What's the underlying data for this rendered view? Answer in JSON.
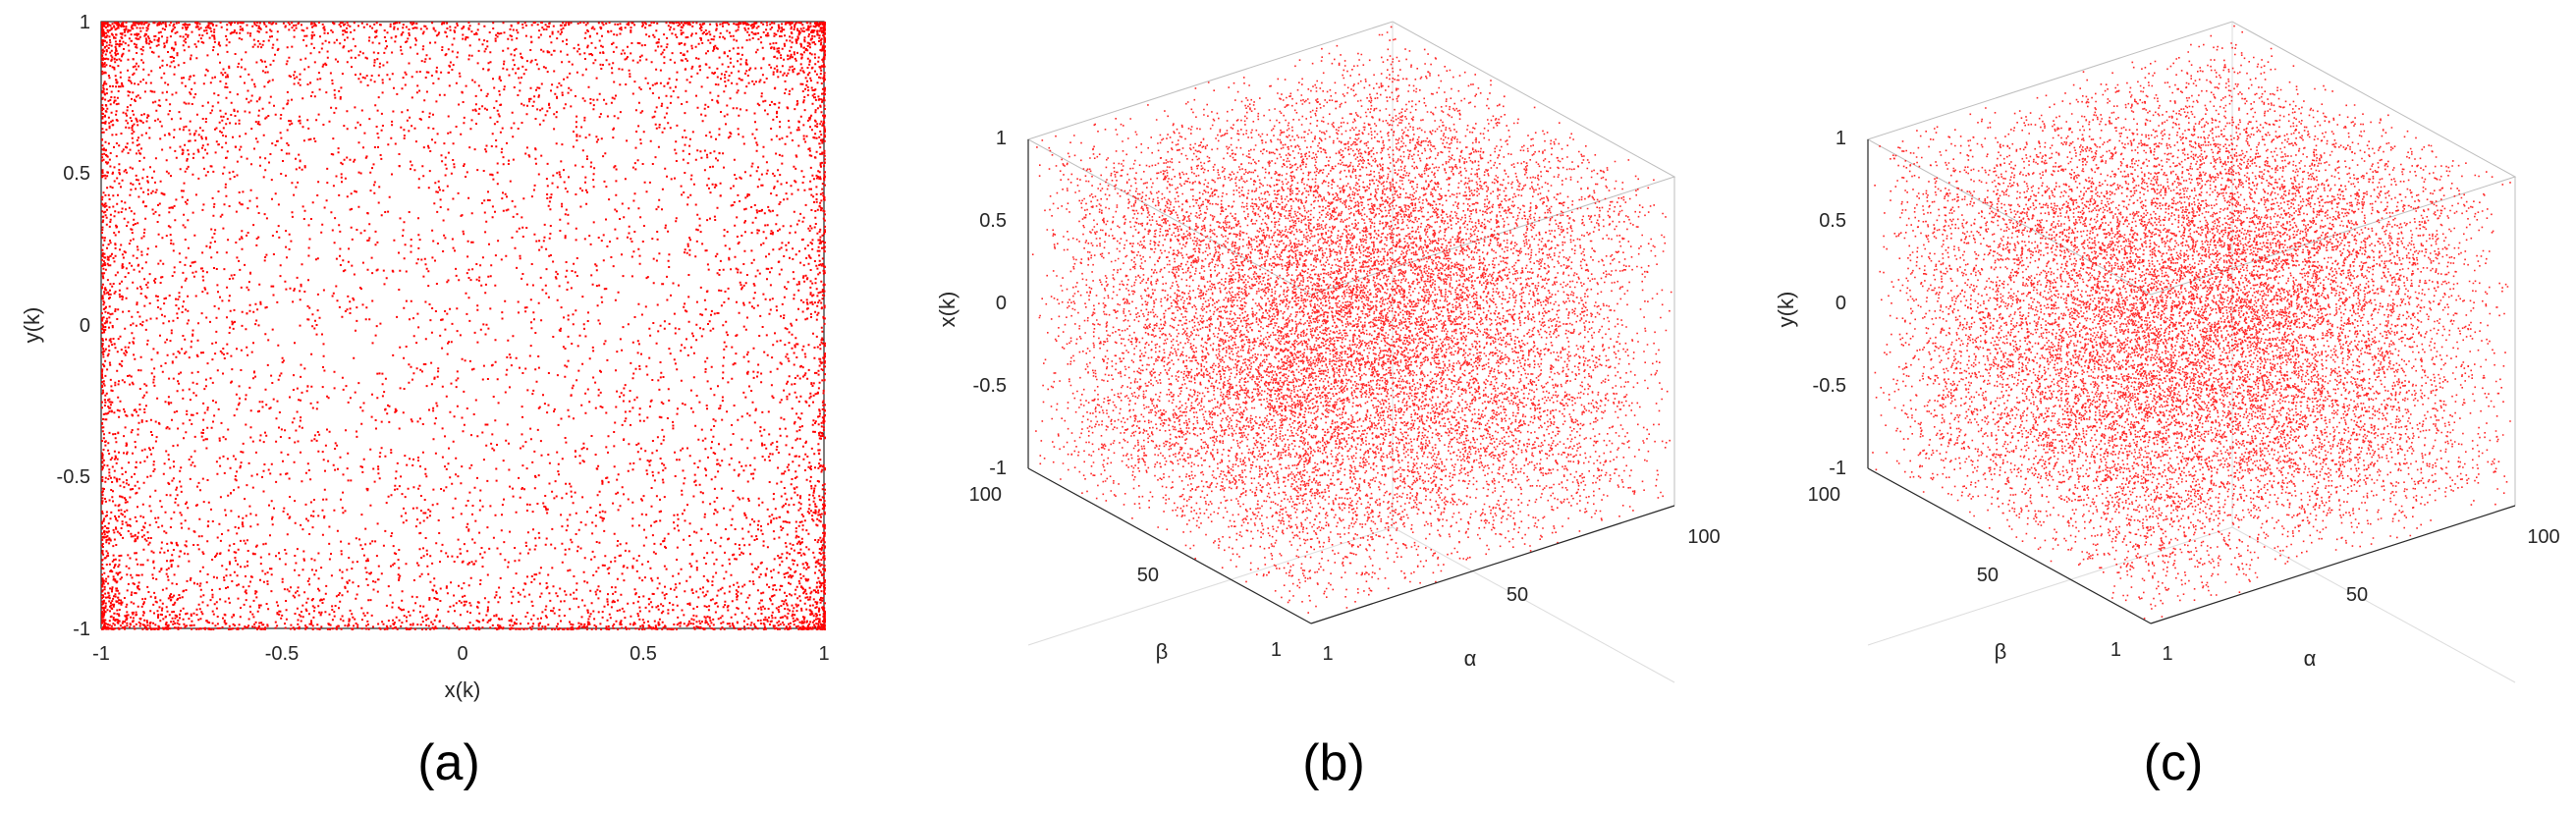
{
  "chart_data": [
    {
      "type": "scatter",
      "caption": "(a)",
      "xlabel": "x(k)",
      "ylabel": "y(k)",
      "xlim": [
        -1,
        1
      ],
      "ylim": [
        -1,
        1
      ],
      "xticks": [
        "-1",
        "-0.5",
        "0",
        "0.5",
        "1"
      ],
      "yticks": [
        "-1",
        "-0.5",
        "0",
        "0.5",
        "1"
      ],
      "marker_color": "#ff0000",
      "distribution": "uniform dense scatter over the full square, denser along the edges (arcsine-like)",
      "point_count": 9000
    },
    {
      "type": "scatter",
      "caption": "(b)",
      "projection": "3d",
      "xlabel": "α",
      "ylabel": "β",
      "zlabel": "x(k)",
      "xlim": [
        1,
        100
      ],
      "ylim": [
        1,
        100
      ],
      "zlim": [
        -1,
        1
      ],
      "xticks": [
        "1",
        "50",
        "100"
      ],
      "yticks": [
        "1",
        "50",
        "100"
      ],
      "zticks": [
        "-1",
        "-0.5",
        "0",
        "0.5",
        "1"
      ],
      "marker_color": "#ff0000",
      "distribution": "dense uniform cloud filling the cube",
      "point_count": 16000
    },
    {
      "type": "scatter",
      "caption": "(c)",
      "projection": "3d",
      "xlabel": "α",
      "ylabel": "β",
      "zlabel": "y(k)",
      "xlim": [
        1,
        100
      ],
      "ylim": [
        1,
        100
      ],
      "zlim": [
        -1,
        1
      ],
      "xticks": [
        "1",
        "50",
        "100"
      ],
      "yticks": [
        "1",
        "50",
        "100"
      ],
      "zticks": [
        "-1",
        "-0.5",
        "0",
        "0.5",
        "1"
      ],
      "marker_color": "#ff0000",
      "distribution": "dense uniform cloud filling the cube",
      "point_count": 16000
    }
  ]
}
